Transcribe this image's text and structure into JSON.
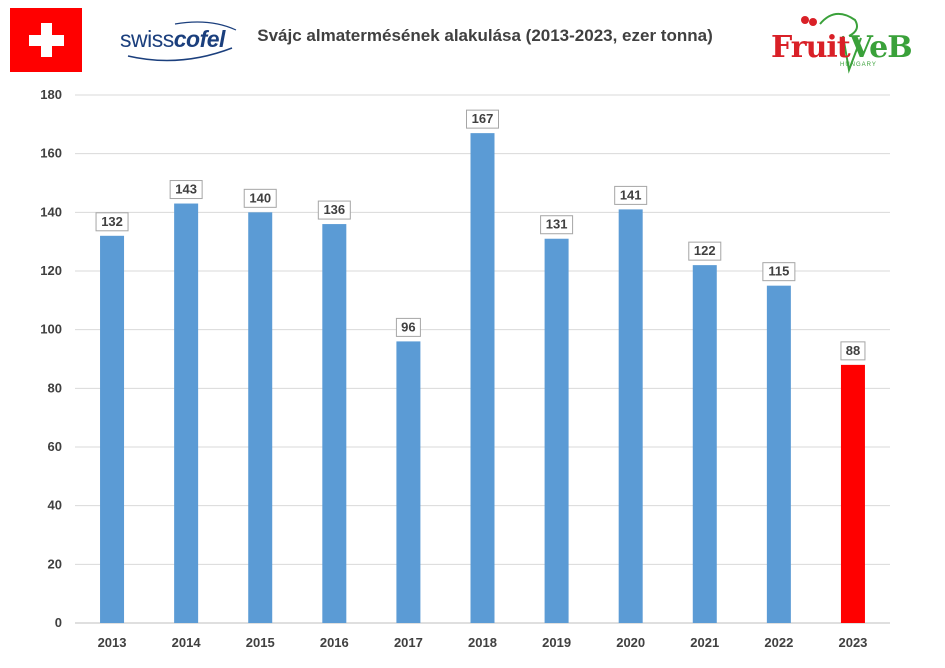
{
  "header": {
    "title": "Svájc almatermésének alakulása (2013-2023, ezer tonna)",
    "logo_left_text_a": "swiss",
    "logo_left_text_b": "cofel",
    "logo_right_text_a": "Fruit",
    "logo_right_text_b": "VeB",
    "logo_right_subtext": "HUNGARY"
  },
  "colors": {
    "bar_default": "#5b9bd5",
    "bar_highlight": "#ff0000",
    "grid": "#d9d9d9",
    "flag_red": "#ff0000"
  },
  "chart_data": {
    "type": "bar",
    "title": "Svájc almatermésének alakulása (2013-2023, ezer tonna)",
    "categories": [
      "2013",
      "2014",
      "2015",
      "2016",
      "2017",
      "2018",
      "2019",
      "2020",
      "2021",
      "2022",
      "2023"
    ],
    "values": [
      132,
      143,
      140,
      136,
      96,
      167,
      131,
      141,
      122,
      115,
      88
    ],
    "highlight_index": 10,
    "ylim": [
      0,
      180
    ],
    "yticks": [
      0,
      20,
      40,
      60,
      80,
      100,
      120,
      140,
      160,
      180
    ],
    "grid": true,
    "legend": "none",
    "data_labels": true
  }
}
